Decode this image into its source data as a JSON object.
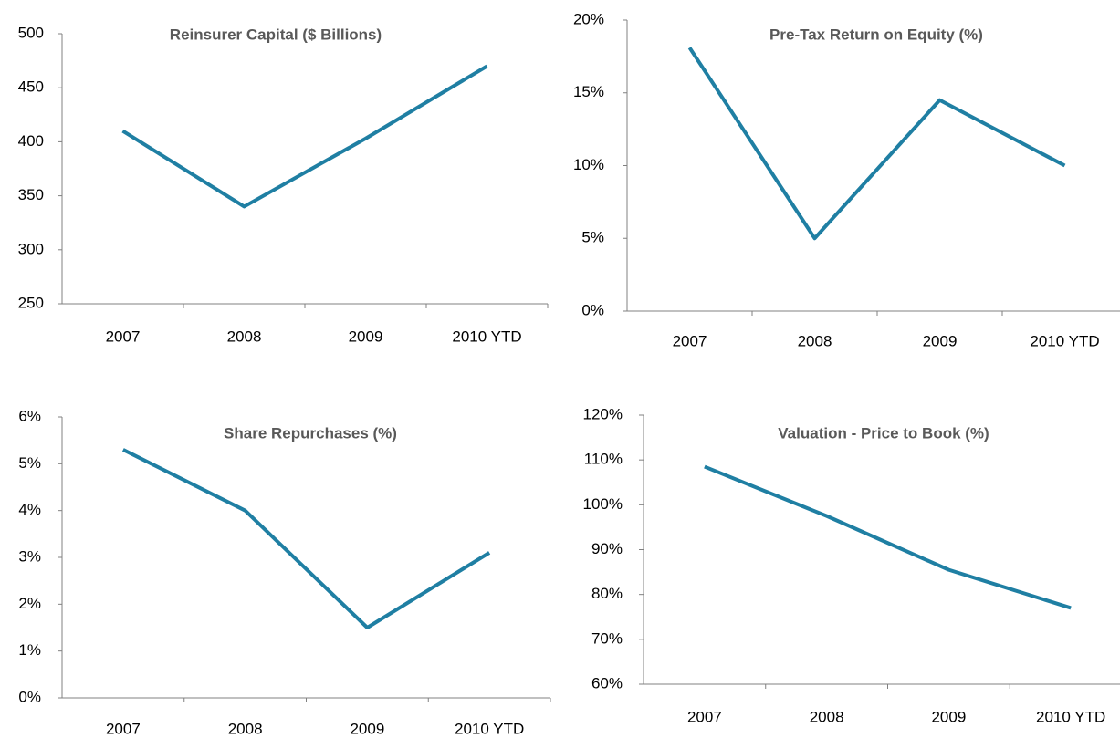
{
  "chart_data": [
    {
      "type": "line",
      "title": "Reinsurer Capital ($ Billions)",
      "categories": [
        "2007",
        "2008",
        "2009",
        "2010 YTD"
      ],
      "series": [
        {
          "color": "#1f7fa3",
          "values": [
            410,
            340,
            403,
            470
          ]
        }
      ],
      "ylim": [
        250,
        500
      ],
      "yticks": [
        250,
        300,
        350,
        400,
        450,
        500
      ]
    },
    {
      "type": "line",
      "title": "Pre-Tax Return on Equity (%)",
      "categories": [
        "2007",
        "2008",
        "2009",
        "2010 YTD"
      ],
      "series": [
        {
          "color": "#1f7fa3",
          "values": [
            18.1,
            5,
            14.5,
            10
          ]
        }
      ],
      "ylim": [
        0,
        20
      ],
      "yticks": [
        {
          "value": 0,
          "label": "0%"
        },
        {
          "value": 5,
          "label": "5%"
        },
        {
          "value": 10,
          "label": "10%"
        },
        {
          "value": 15,
          "label": "15%"
        },
        {
          "value": 20,
          "label": "20%"
        }
      ]
    },
    {
      "type": "line",
      "title": "Share Repurchases (%)",
      "categories": [
        "2007",
        "2008",
        "2009",
        "2010 YTD"
      ],
      "series": [
        {
          "color": "#1f7fa3",
          "values": [
            5.3,
            4.0,
            1.5,
            3.1
          ]
        }
      ],
      "ylim": [
        0,
        6
      ],
      "yticks": [
        {
          "value": 0,
          "label": "0%"
        },
        {
          "value": 1,
          "label": "1%"
        },
        {
          "value": 2,
          "label": "2%"
        },
        {
          "value": 3,
          "label": "3%"
        },
        {
          "value": 4,
          "label": "4%"
        },
        {
          "value": 5,
          "label": "5%"
        },
        {
          "value": 6,
          "label": "6%"
        }
      ]
    },
    {
      "type": "line",
      "title": "Valuation - Price to Book (%)",
      "categories": [
        "2007",
        "2008",
        "2009",
        "2010 YTD"
      ],
      "series": [
        {
          "color": "#1f7fa3",
          "values": [
            108.5,
            97.5,
            85.5,
            77
          ]
        }
      ],
      "ylim": [
        60,
        120
      ],
      "yticks": [
        {
          "value": 60,
          "label": "60%"
        },
        {
          "value": 70,
          "label": "70%"
        },
        {
          "value": 80,
          "label": "80%"
        },
        {
          "value": 90,
          "label": "90%"
        },
        {
          "value": 100,
          "label": "100%"
        },
        {
          "value": 110,
          "label": "110%"
        },
        {
          "value": 120,
          "label": "120%"
        }
      ]
    }
  ]
}
